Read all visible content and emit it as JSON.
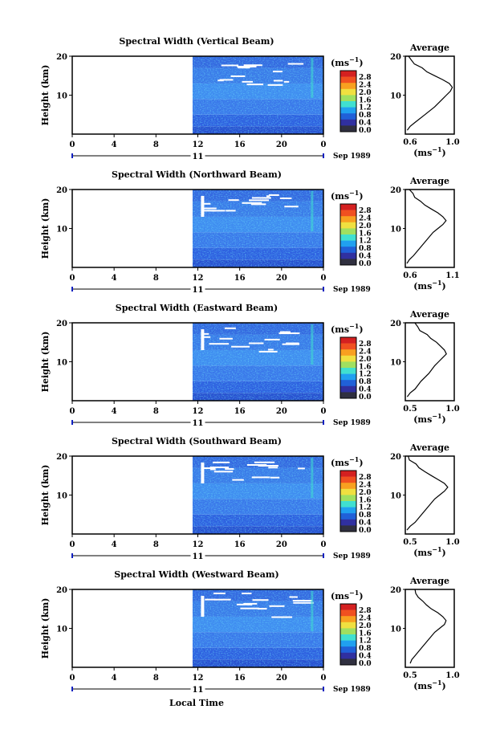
{
  "panels": [
    {
      "title": "Spectral Width (Vertical Beam)",
      "avg_title": "Average",
      "avg_ticks": [
        "0.6",
        "1.0"
      ],
      "avg_range": [
        0.5,
        1.0
      ]
    },
    {
      "title": "Spectral Width (Northward Beam)",
      "avg_title": "Average",
      "avg_ticks": [
        "0.6",
        "1.1"
      ],
      "avg_range": [
        0.5,
        1.1
      ]
    },
    {
      "title": "Spectral Width (Eastward Beam)",
      "avg_title": "Average",
      "avg_ticks": [
        "0.5",
        "1.0"
      ],
      "avg_range": [
        0.5,
        1.0
      ]
    },
    {
      "title": "Spectral Width (Southward Beam)",
      "avg_title": "Average",
      "avg_ticks": [
        "0.5",
        "1.0"
      ],
      "avg_range": [
        0.5,
        1.1
      ]
    },
    {
      "title": "Spectral Width (Westward Beam)",
      "avg_title": "Average",
      "avg_ticks": [
        "0.5",
        "1.0"
      ],
      "avg_range": [
        0.5,
        1.1
      ]
    }
  ],
  "ylabel": "Height (km)",
  "y_ticks": [
    "20",
    "10"
  ],
  "x_ticks": [
    "0",
    "4",
    "8",
    "12",
    "16",
    "20",
    "0"
  ],
  "day_label": "11",
  "date_label": "Sep 1989",
  "unit_label": "(ms",
  "unit_exp": "−1",
  "colorbar_ticks": [
    "2.8",
    "2.4",
    "2.0",
    "1.6",
    "1.2",
    "0.8",
    "0.4",
    "0.0"
  ],
  "colorbar_colors": [
    "#d42020",
    "#f05020",
    "#f8a020",
    "#f0e040",
    "#a0e060",
    "#40e0d0",
    "#20a0f0",
    "#2060d8",
    "#3030a0",
    "#303040"
  ],
  "xlabel": "Local Time",
  "chart_data": [
    {
      "type": "heatmap",
      "title": "Spectral Width (Vertical Beam)",
      "ylabel": "Height (km)",
      "x_range": [
        0,
        24
      ],
      "y_range": [
        0,
        20
      ],
      "data_start_hour": 11.5,
      "colorbar_range": [
        0.0,
        2.8
      ],
      "colorbar_unit": "ms-1"
    },
    {
      "type": "line",
      "title": "Average",
      "xlim": [
        0.5,
        1.0
      ],
      "x": [
        0.52,
        0.55,
        0.6,
        0.7,
        0.8,
        0.88,
        0.92,
        0.96,
        0.98,
        0.95,
        0.88,
        0.8,
        0.72,
        0.66,
        0.6,
        0.56,
        0.52
      ],
      "y": [
        1,
        2,
        3,
        5,
        7,
        9,
        10,
        11,
        12,
        13,
        14,
        15,
        16,
        17,
        18,
        19,
        20
      ]
    },
    {
      "type": "heatmap",
      "title": "Spectral Width (Northward Beam)",
      "ylabel": "Height (km)",
      "x_range": [
        0,
        24
      ],
      "y_range": [
        0,
        20
      ],
      "data_start_hour": 11.5,
      "colorbar_range": [
        0.0,
        2.8
      ],
      "colorbar_unit": "ms-1"
    },
    {
      "type": "line",
      "title": "Average",
      "xlim": [
        0.5,
        1.1
      ],
      "x": [
        0.52,
        0.55,
        0.6,
        0.68,
        0.76,
        0.84,
        0.9,
        0.96,
        1.0,
        0.96,
        0.9,
        0.82,
        0.74,
        0.68,
        0.62,
        0.58,
        0.54
      ],
      "y": [
        1,
        2,
        3,
        5,
        7,
        9,
        10,
        11,
        12,
        13,
        14,
        15,
        16,
        17,
        18,
        19,
        20
      ]
    },
    {
      "type": "heatmap",
      "title": "Spectral Width (Eastward Beam)",
      "ylabel": "Height (km)",
      "x_range": [
        0,
        24
      ],
      "y_range": [
        0,
        20
      ],
      "data_start_hour": 11.5,
      "colorbar_range": [
        0.0,
        2.8
      ],
      "colorbar_unit": "ms-1"
    },
    {
      "type": "line",
      "title": "Average",
      "xlim": [
        0.5,
        1.0
      ],
      "x": [
        0.52,
        0.55,
        0.6,
        0.66,
        0.74,
        0.8,
        0.84,
        0.88,
        0.92,
        0.9,
        0.86,
        0.82,
        0.76,
        0.72,
        0.66,
        0.62,
        0.6
      ],
      "y": [
        1,
        2,
        3,
        5,
        7,
        9,
        10,
        11,
        12,
        13,
        14,
        15,
        16,
        17,
        18,
        19,
        20
      ]
    },
    {
      "type": "heatmap",
      "title": "Spectral Width (Southward Beam)",
      "ylabel": "Height (km)",
      "x_range": [
        0,
        24
      ],
      "y_range": [
        0,
        20
      ],
      "data_start_hour": 11.5,
      "colorbar_range": [
        0.0,
        2.8
      ],
      "colorbar_unit": "ms-1"
    },
    {
      "type": "line",
      "title": "Average",
      "xlim": [
        0.5,
        1.1
      ],
      "x": [
        0.52,
        0.56,
        0.62,
        0.7,
        0.78,
        0.86,
        0.92,
        0.98,
        1.02,
        0.98,
        0.9,
        0.82,
        0.74,
        0.68,
        0.62,
        0.56,
        0.52
      ],
      "y": [
        1,
        2,
        3,
        5,
        7,
        9,
        10,
        11,
        12,
        13,
        14,
        15,
        16,
        17,
        18,
        19,
        20
      ]
    },
    {
      "type": "heatmap",
      "title": "Spectral Width (Westward Beam)",
      "ylabel": "Height (km)",
      "x_range": [
        0,
        24
      ],
      "y_range": [
        0,
        20
      ],
      "data_start_hour": 11.5,
      "colorbar_range": [
        0.0,
        2.8
      ],
      "colorbar_unit": "ms-1"
    },
    {
      "type": "line",
      "title": "Average",
      "xlim": [
        0.5,
        1.1
      ],
      "x": [
        0.56,
        0.58,
        0.62,
        0.7,
        0.78,
        0.86,
        0.92,
        0.98,
        1.0,
        0.96,
        0.9,
        0.82,
        0.76,
        0.7,
        0.66,
        0.62,
        0.6
      ],
      "y": [
        1,
        2,
        3,
        5,
        7,
        9,
        10,
        11,
        12,
        13,
        14,
        15,
        16,
        17,
        18,
        19,
        20
      ]
    }
  ]
}
